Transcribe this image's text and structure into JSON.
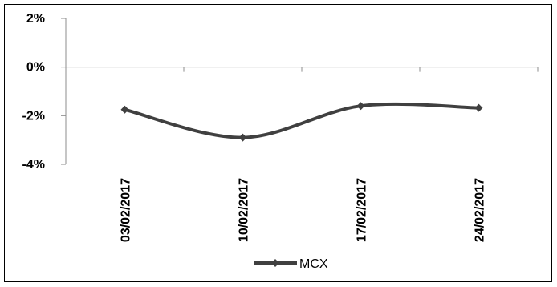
{
  "chart_data": {
    "type": "line",
    "title": "",
    "xlabel": "",
    "ylabel": "",
    "categories": [
      "03/02/2017",
      "10/02/2017",
      "17/02/2017",
      "24/02/2017"
    ],
    "series": [
      {
        "name": "MCX",
        "values": [
          -1.75,
          -2.9,
          -1.6,
          -1.68
        ],
        "color": "#404040",
        "smooth": true,
        "marker": "diamond"
      }
    ],
    "ylim": [
      -4,
      2
    ],
    "yticks": [
      2,
      0,
      -2,
      -4
    ],
    "ytick_labels": [
      "2%",
      "0%",
      "-2%",
      "-4%"
    ],
    "grid": false,
    "legend_position": "bottom"
  }
}
